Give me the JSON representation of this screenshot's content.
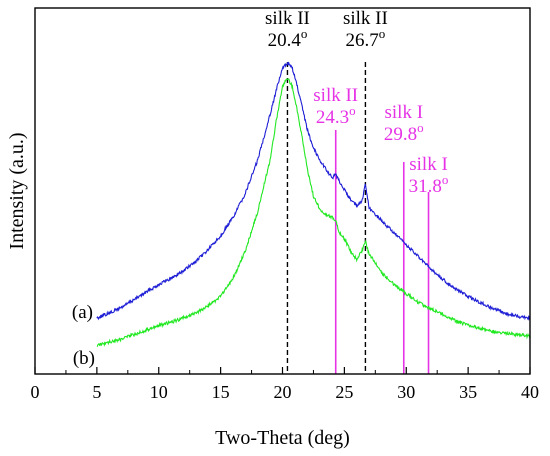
{
  "chart_data": {
    "type": "line",
    "title": "",
    "xlabel": "Two-Theta (deg)",
    "ylabel": "Intensity (a.u.)",
    "xlim": [
      0,
      40
    ],
    "xticks": [
      0,
      5,
      10,
      15,
      20,
      25,
      30,
      35,
      40
    ],
    "y_tick_labels": false,
    "grid": false,
    "legend": "none",
    "series": [
      {
        "name": "(a)",
        "color": "#1f1fd6",
        "x": [
          5,
          6,
          7,
          8,
          9,
          10,
          11,
          12,
          13,
          14,
          15,
          16,
          17,
          18,
          19,
          19.5,
          20,
          20.4,
          20.8,
          21.2,
          21.6,
          22,
          22.5,
          23,
          23.5,
          24,
          24.3,
          24.6,
          25,
          25.5,
          26,
          26.4,
          26.7,
          27,
          27.5,
          28,
          29,
          30,
          31,
          32,
          33,
          34,
          35,
          36,
          37,
          38,
          39,
          40
        ],
        "values": [
          0.04,
          0.055,
          0.075,
          0.1,
          0.125,
          0.15,
          0.17,
          0.195,
          0.225,
          0.265,
          0.31,
          0.37,
          0.45,
          0.56,
          0.71,
          0.79,
          0.86,
          0.88,
          0.86,
          0.8,
          0.73,
          0.66,
          0.6,
          0.56,
          0.53,
          0.5,
          0.51,
          0.49,
          0.46,
          0.43,
          0.41,
          0.42,
          0.48,
          0.4,
          0.38,
          0.36,
          0.32,
          0.28,
          0.24,
          0.2,
          0.165,
          0.135,
          0.11,
          0.09,
          0.07,
          0.055,
          0.045,
          0.04
        ]
      },
      {
        "name": "(b)",
        "color": "#22e822",
        "x": [
          5,
          6,
          7,
          8,
          9,
          10,
          11,
          12,
          13,
          14,
          15,
          16,
          17,
          18,
          19,
          19.5,
          20,
          20.4,
          20.8,
          21.2,
          21.6,
          22,
          22.5,
          23,
          23.5,
          24,
          24.3,
          24.6,
          25,
          25.5,
          26,
          26.4,
          26.7,
          27,
          27.5,
          28,
          29,
          30,
          31,
          32,
          33,
          34,
          35,
          36,
          37,
          38,
          39,
          40
        ],
        "values": [
          -0.05,
          -0.04,
          -0.03,
          -0.015,
          0.0,
          0.015,
          0.025,
          0.04,
          0.055,
          0.08,
          0.11,
          0.17,
          0.26,
          0.39,
          0.56,
          0.69,
          0.8,
          0.83,
          0.8,
          0.72,
          0.63,
          0.53,
          0.44,
          0.4,
          0.38,
          0.37,
          0.36,
          0.32,
          0.3,
          0.26,
          0.23,
          0.26,
          0.29,
          0.25,
          0.22,
          0.19,
          0.15,
          0.12,
          0.09,
          0.07,
          0.05,
          0.03,
          0.015,
          0.005,
          -0.005,
          -0.01,
          -0.015,
          -0.02
        ]
      }
    ],
    "annotations": [
      {
        "x": 20.4,
        "style": "dashed",
        "color": "#000000",
        "line1": "silk II",
        "line2": "20.4",
        "degree": "o"
      },
      {
        "x": 26.7,
        "style": "dashed",
        "color": "#000000",
        "line1": "silk II",
        "line2": "26.7",
        "degree": "o"
      },
      {
        "x": 24.3,
        "style": "solid",
        "color": "#e633e6",
        "line1": "silk II",
        "line2": "24.3",
        "degree": "o"
      },
      {
        "x": 29.8,
        "style": "solid",
        "color": "#e633e6",
        "line1": "silk I",
        "line2": "29.8",
        "degree": "o"
      },
      {
        "x": 31.8,
        "style": "solid",
        "color": "#e633e6",
        "line1": "silk I",
        "line2": "31.8",
        "degree": "o"
      }
    ]
  }
}
